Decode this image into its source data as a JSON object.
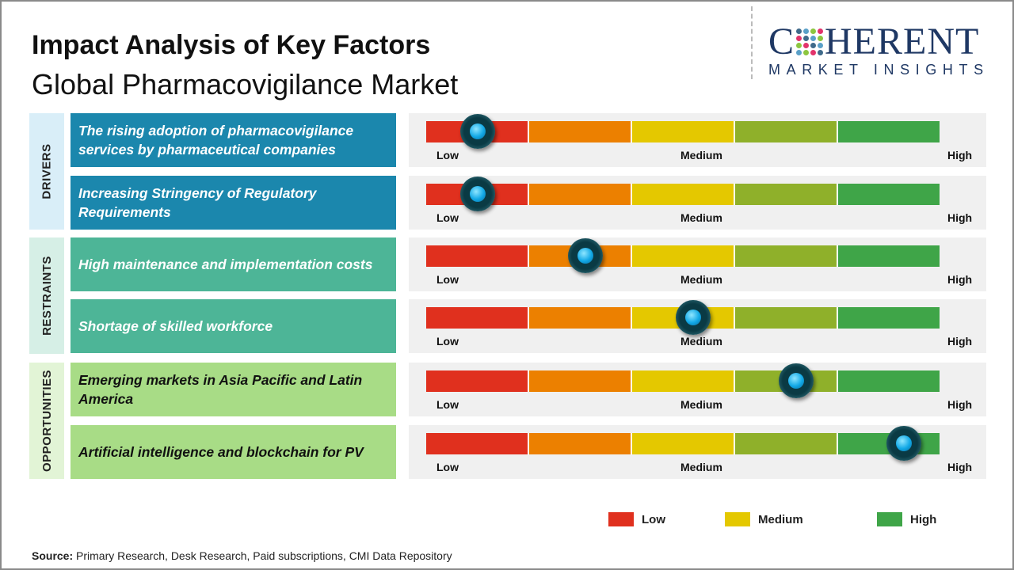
{
  "title": "Impact Analysis of Key Factors",
  "subtitle": "Global Pharmacovigilance Market",
  "logo": {
    "line1": "COHERENT",
    "line2": "MARKET INSIGHTS"
  },
  "colors": {
    "low": "#e0301e",
    "low_medium": "#ec8000",
    "medium": "#e4c800",
    "medium_high": "#8fb02a",
    "high": "#3fa548",
    "drivers": "#1b87ad",
    "restraints": "#4db597",
    "opportunities": "#a8dc86"
  },
  "scale_labels": {
    "low": "Low",
    "medium": "Medium",
    "high": "High"
  },
  "chart_data": {
    "type": "gauge",
    "scale": "Low to High (0 = Low, 1 = High)",
    "categories": [
      {
        "name": "DRIVERS",
        "factors": [
          {
            "label": "The rising adoption of pharmacovigilance services by pharmaceutical companies",
            "impact": 0.1
          },
          {
            "label": "Increasing Stringency of Regulatory Requirements",
            "impact": 0.1
          }
        ]
      },
      {
        "name": "RESTRAINTS",
        "factors": [
          {
            "label": "High maintenance  and implementation costs",
            "impact": 0.31
          },
          {
            "label": "Shortage of skilled workforce",
            "impact": 0.52
          }
        ]
      },
      {
        "name": "OPPORTUNITIES",
        "factors": [
          {
            "label": "Emerging markets in Asia Pacific and Latin America",
            "impact": 0.72
          },
          {
            "label": "Artificial intelligence and blockchain for PV",
            "impact": 0.93
          }
        ]
      }
    ],
    "legend": [
      {
        "label": "Low",
        "color": "#e0301e"
      },
      {
        "label": "Medium",
        "color": "#e4c800"
      },
      {
        "label": "High",
        "color": "#3fa548"
      }
    ]
  },
  "source": {
    "label": "Source:",
    "text": " Primary Research, Desk Research, Paid subscriptions, CMI Data Repository"
  }
}
